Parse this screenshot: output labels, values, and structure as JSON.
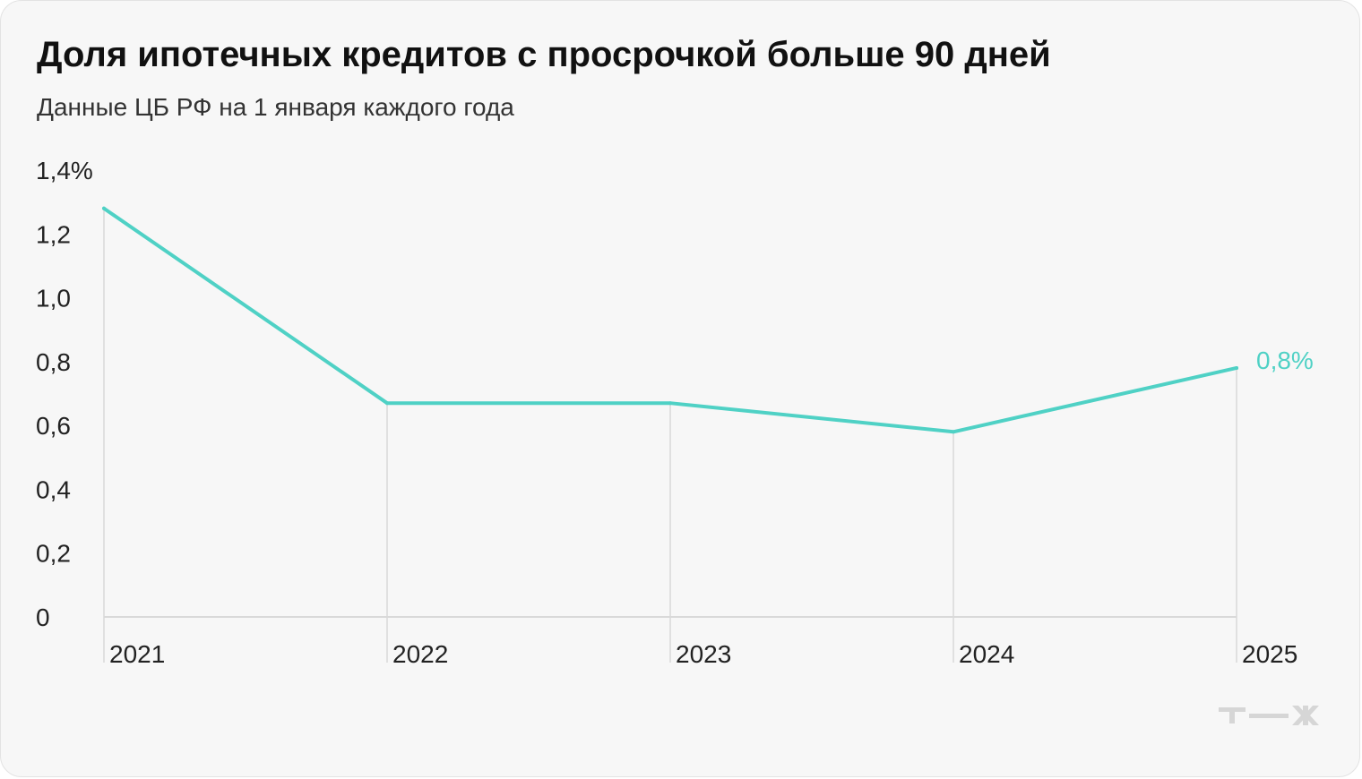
{
  "title": "Доля ипотечных кредитов с просрочкой больше 90 дней",
  "subtitle": "Данные ЦБ РФ на 1 января каждого года",
  "colors": {
    "line": "#4fd1c5",
    "gridline": "#d9d9d9",
    "text": "#222222",
    "card": "#f7f7f7"
  },
  "chart_data": {
    "type": "line",
    "title": "Доля ипотечных кредитов с просрочкой больше 90 дней",
    "subtitle": "Данные ЦБ РФ на 1 января каждого года",
    "categories": [
      "2021",
      "2022",
      "2023",
      "2024",
      "2025"
    ],
    "series": [
      {
        "values": [
          1.28,
          0.67,
          0.67,
          0.58,
          0.78
        ]
      }
    ],
    "ylim": [
      0,
      1.4
    ],
    "yticks": [
      0,
      0.2,
      0.4,
      0.6,
      0.8,
      1.0,
      1.2,
      1.4
    ],
    "ytick_labels": [
      "0",
      "0,2",
      "0,4",
      "0,6",
      "0,8",
      "1,0",
      "1,2",
      "1,4%"
    ],
    "end_label": "0,8%",
    "grid": "vertical"
  },
  "logo": {
    "icon": "tzh-logo-icon",
    "text": "т—ж"
  }
}
